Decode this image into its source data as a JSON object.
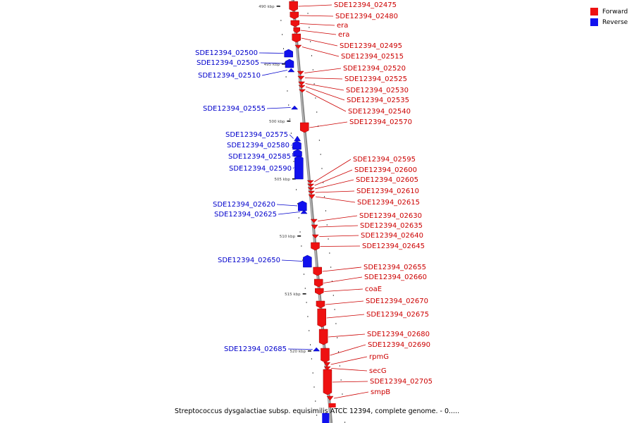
{
  "colors": {
    "forward": "#ee1111",
    "reverse": "#1111ee",
    "forward_label": "#cc0000",
    "reverse_label": "#0000cc"
  },
  "legend": {
    "forward": "Forward",
    "reverse": "Reverse"
  },
  "caption": "Streptococcus dysgalactiae subsp. equisimilis ATCC 12394, complete genome. - 0.....",
  "scale_ticks": [
    "490 kbp",
    "495 kbp",
    "500 kbp",
    "505 kbp",
    "510 kbp",
    "515 kbp",
    "520 kbp"
  ],
  "forward_genes": [
    "SDE12394_02475",
    "SDE12394_02480",
    "era",
    "era",
    "SDE12394_02495",
    "SDE12394_02515",
    "SDE12394_02520",
    "SDE12394_02525",
    "SDE12394_02530",
    "SDE12394_02535",
    "SDE12394_02540",
    "SDE12394_02570",
    "SDE12394_02595",
    "SDE12394_02600",
    "SDE12394_02605",
    "SDE12394_02610",
    "SDE12394_02615",
    "SDE12394_02630",
    "SDE12394_02635",
    "SDE12394_02640",
    "SDE12394_02645",
    "SDE12394_02655",
    "SDE12394_02660",
    "coaE",
    "SDE12394_02670",
    "SDE12394_02675",
    "SDE12394_02680",
    "SDE12394_02690",
    "rpmG",
    "secG",
    "SDE12394_02705",
    "smpB"
  ],
  "reverse_genes": [
    "SDE12394_02500",
    "SDE12394_02505",
    "SDE12394_02510",
    "SDE12394_02555",
    "SDE12394_02575",
    "SDE12394_02580",
    "SDE12394_02585",
    "SDE12394_02590",
    "SDE12394_02620",
    "SDE12394_02625",
    "SDE12394_02650",
    "SDE12394_02685"
  ]
}
